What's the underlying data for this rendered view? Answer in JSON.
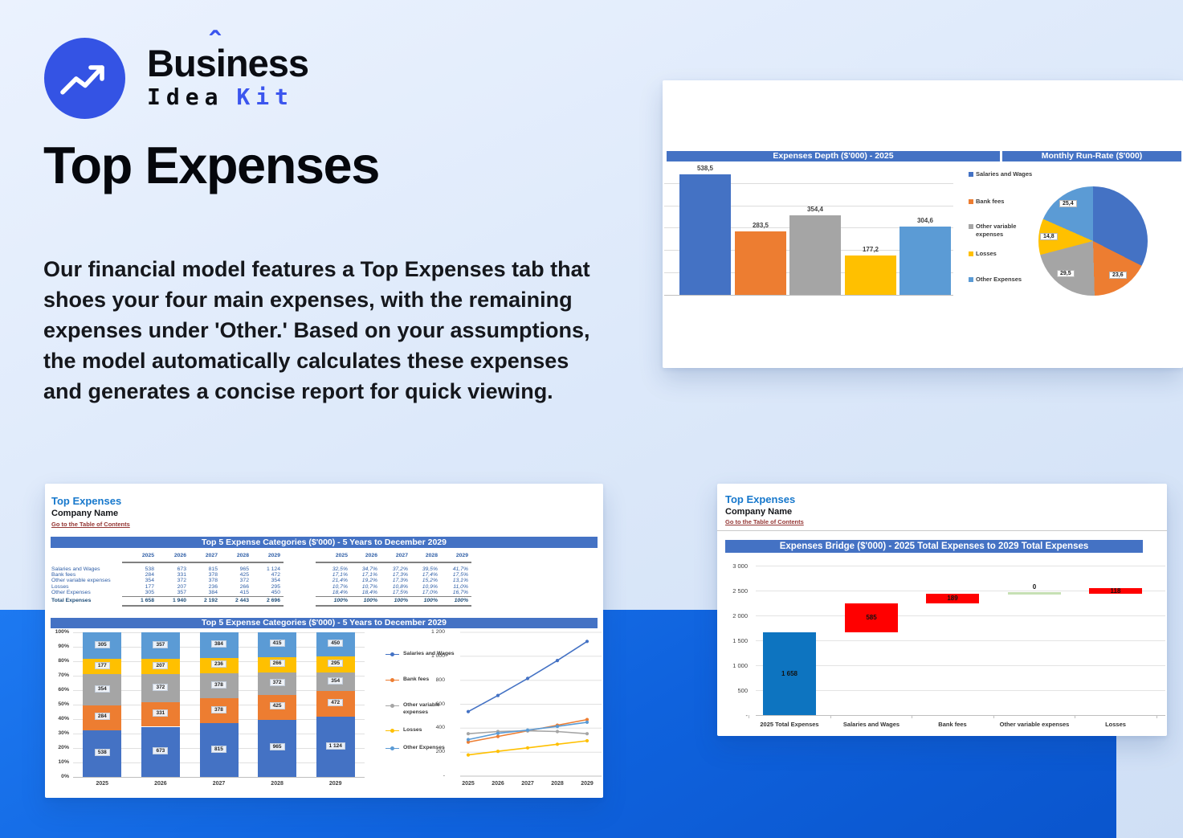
{
  "brand": {
    "word_pre": "Bus",
    "accent_letter": "i",
    "accent_mark": "ˆ",
    "word_post": "ness",
    "sub_dark": "Idea",
    "sub_accent": "Kit",
    "accent_color": "#3b55ee"
  },
  "hero": {
    "title": "Top Expenses",
    "paragraph": "Our financial model features a Top Expenses tab that shoes your four main expenses, with the remaining expenses under 'Other.' Based on your assumptions, the model automatically calculates these expenses and generates a concise report for quick viewing."
  },
  "palette": {
    "salaries": "#4472C4",
    "bank_fees": "#ED7D31",
    "other_variable": "#A5A5A5",
    "losses": "#FFC000",
    "other_expenses": "#5B9BD5",
    "banner": "#4472C4",
    "waterfall_total": "#0d74c0",
    "waterfall_change": "#FF0000",
    "waterfall_zero": "#c6e0b4",
    "band_blue": "#0f62dd"
  },
  "sheets": {
    "left": {
      "title": "Top Expenses",
      "company": "Company Name",
      "link": "Go to the Table of Contents",
      "table_banner": "Top 5 Expense Categories ($'000) - 5 Years to December 2029",
      "years": [
        "2025",
        "2026",
        "2027",
        "2028",
        "2029"
      ],
      "rows": [
        {
          "label": "Salaries and Wages",
          "values": [
            "538",
            "673",
            "815",
            "965",
            "1 124"
          ],
          "pcts": [
            "32,5%",
            "34,7%",
            "37,2%",
            "39,5%",
            "41,7%"
          ]
        },
        {
          "label": "Bank fees",
          "values": [
            "284",
            "331",
            "378",
            "425",
            "472"
          ],
          "pcts": [
            "17,1%",
            "17,1%",
            "17,3%",
            "17,4%",
            "17,5%"
          ]
        },
        {
          "label": "Other variable expenses",
          "values": [
            "354",
            "372",
            "378",
            "372",
            "354"
          ],
          "pcts": [
            "21,4%",
            "19,2%",
            "17,3%",
            "15,2%",
            "13,1%"
          ]
        },
        {
          "label": "Losses",
          "values": [
            "177",
            "207",
            "236",
            "266",
            "295"
          ],
          "pcts": [
            "10,7%",
            "10,7%",
            "10,8%",
            "10,9%",
            "11,0%"
          ]
        },
        {
          "label": "Other Expenses",
          "values": [
            "305",
            "357",
            "384",
            "415",
            "450"
          ],
          "pcts": [
            "18,4%",
            "18,4%",
            "17,5%",
            "17,0%",
            "16,7%"
          ]
        }
      ],
      "total": {
        "label": "Total Expenses",
        "values": [
          "1 658",
          "1 940",
          "2 192",
          "2 443",
          "2 696"
        ],
        "pcts": [
          "100%",
          "100%",
          "100%",
          "100%",
          "100%"
        ]
      }
    },
    "right": {
      "title": "Top Expenses",
      "company": "Company Name",
      "link": "Go to the Table of Contents"
    }
  },
  "chart_data": [
    {
      "id": "expenses_depth",
      "type": "bar",
      "title": "Expenses Depth ($'000) - 2025",
      "categories": [
        "Salaries and Wages",
        "Bank fees",
        "Other variable expenses",
        "Losses",
        "Other Expenses"
      ],
      "values": [
        538.5,
        283.5,
        354.4,
        177.2,
        304.6
      ],
      "value_labels": [
        "538,5",
        "283,5",
        "354,4",
        "177,2",
        "304,6"
      ],
      "ylim": [
        0,
        550
      ],
      "grid": true,
      "legend_position": "right",
      "legend": [
        "Salaries and Wages",
        "Bank fees",
        "Other variable expenses",
        "Losses",
        "Other Expenses"
      ]
    },
    {
      "id": "monthly_run_rate",
      "type": "pie",
      "title": "Monthly Run-Rate ($'000)",
      "slices": [
        {
          "name": "Salaries and Wages",
          "value": 44.9,
          "label": ""
        },
        {
          "name": "Bank fees",
          "value": 23.6,
          "label": "23,6"
        },
        {
          "name": "Other variable expenses",
          "value": 29.5,
          "label": "29,5"
        },
        {
          "name": "Losses",
          "value": 14.8,
          "label": "14,8"
        },
        {
          "name": "Other Expenses",
          "value": 25.4,
          "label": "25,4"
        }
      ]
    },
    {
      "id": "top5_stacked",
      "type": "stacked-bar-100",
      "title": "Top 5 Expense Categories ($'000) - 5 Years to December 2029",
      "categories": [
        "2025",
        "2026",
        "2027",
        "2028",
        "2029"
      ],
      "series": [
        {
          "name": "Salaries and Wages",
          "values": [
            538,
            673,
            815,
            965,
            1124
          ],
          "labels": [
            "538",
            "673",
            "815",
            "965",
            "1 124"
          ]
        },
        {
          "name": "Bank fees",
          "values": [
            284,
            331,
            378,
            425,
            472
          ],
          "labels": [
            "284",
            "331",
            "378",
            "425",
            "472"
          ]
        },
        {
          "name": "Other variable expenses",
          "values": [
            354,
            372,
            378,
            372,
            354
          ],
          "labels": [
            "354",
            "372",
            "378",
            "372",
            "354"
          ]
        },
        {
          "name": "Losses",
          "values": [
            177,
            207,
            236,
            266,
            295
          ],
          "labels": [
            "177",
            "207",
            "236",
            "266",
            "295"
          ]
        },
        {
          "name": "Other Expenses",
          "values": [
            305,
            357,
            384,
            415,
            450
          ],
          "labels": [
            "305",
            "357",
            "384",
            "415",
            "450"
          ]
        }
      ],
      "yticks": [
        "0%",
        "10%",
        "20%",
        "30%",
        "40%",
        "50%",
        "60%",
        "70%",
        "80%",
        "90%",
        "100%"
      ],
      "legend": [
        "Salaries and Wages",
        "Bank fees",
        "Other variable expenses",
        "Losses",
        "Other Expenses"
      ],
      "legend_position": "right"
    },
    {
      "id": "top5_lines",
      "type": "line",
      "categories": [
        "2025",
        "2026",
        "2027",
        "2028",
        "2029"
      ],
      "series": [
        {
          "name": "Salaries and Wages",
          "values": [
            538,
            673,
            815,
            965,
            1124
          ]
        },
        {
          "name": "Bank fees",
          "values": [
            284,
            331,
            378,
            425,
            472
          ]
        },
        {
          "name": "Other variable expenses",
          "values": [
            354,
            372,
            378,
            372,
            354
          ]
        },
        {
          "name": "Losses",
          "values": [
            177,
            207,
            236,
            266,
            295
          ]
        },
        {
          "name": "Other Expenses",
          "values": [
            305,
            357,
            384,
            415,
            450
          ]
        }
      ],
      "yticks": [
        "-",
        "200",
        "400",
        "600",
        "800",
        "1 000",
        "1 200"
      ],
      "ylim": [
        0,
        1200
      ],
      "grid": true
    },
    {
      "id": "expenses_bridge",
      "type": "waterfall",
      "title": "Expenses Bridge ($'000) - 2025 Total Expenses to 2029 Total Expenses",
      "categories": [
        "2025 Total Expenses",
        "Salaries and Wages",
        "Bank fees",
        "Other variable expenses",
        "Losses"
      ],
      "bars": [
        {
          "kind": "total",
          "label": "1 658",
          "start": 0,
          "end": 1658
        },
        {
          "kind": "increase",
          "label": "585",
          "start": 1658,
          "end": 2243
        },
        {
          "kind": "increase",
          "label": "189",
          "start": 2243,
          "end": 2432
        },
        {
          "kind": "zero",
          "label": "0",
          "start": 2432,
          "end": 2432
        },
        {
          "kind": "increase",
          "label": "118",
          "start": 2432,
          "end": 2550
        }
      ],
      "yticks": [
        "-",
        "500",
        "1 000",
        "1 500",
        "2 000",
        "2 500",
        "3 000"
      ],
      "ylim": [
        0,
        3000
      ],
      "grid": true
    }
  ]
}
